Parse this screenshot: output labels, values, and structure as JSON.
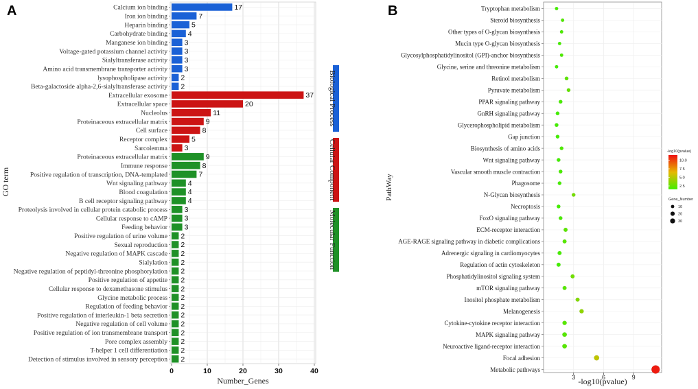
{
  "panels": {
    "a_label": "A",
    "b_label": "B"
  },
  "chart_data": [
    {
      "type": "bar",
      "orientation": "horizontal",
      "title": "",
      "xlabel": "Number_Genes",
      "ylabel": "GO term",
      "xlim": [
        0,
        40
      ],
      "xticks": [
        0,
        10,
        20,
        30,
        40
      ],
      "grid": true,
      "groups": [
        {
          "name": "Biological Process",
          "color": "#1a61d6"
        },
        {
          "name": "Cellular Component",
          "color": "#cc1414"
        },
        {
          "name": "Molecular Function",
          "color": "#1f9127"
        }
      ],
      "bars": [
        {
          "label": "Calcium ion binding",
          "value": 17,
          "group": 0
        },
        {
          "label": "Iron ion binding",
          "value": 7,
          "group": 0
        },
        {
          "label": "Heparin binding",
          "value": 5,
          "group": 0
        },
        {
          "label": "Carbohydrate binding",
          "value": 4,
          "group": 0
        },
        {
          "label": "Manganese ion binding",
          "value": 3,
          "group": 0
        },
        {
          "label": "Voltage-gated potassium channel activity",
          "value": 3,
          "group": 0
        },
        {
          "label": "Sialyltransferase activity",
          "value": 3,
          "group": 0
        },
        {
          "label": "Amino acid transmembrane transporter activity",
          "value": 3,
          "group": 0
        },
        {
          "label": "lysophospholipase activity",
          "value": 2,
          "group": 0
        },
        {
          "label": "Beta-galactoside alpha-2,6-sialyltransferase activity",
          "value": 2,
          "group": 0
        },
        {
          "label": "Extracellular exosome",
          "value": 37,
          "group": 1
        },
        {
          "label": "Extracellular space",
          "value": 20,
          "group": 1
        },
        {
          "label": "Nucleolus",
          "value": 11,
          "group": 1
        },
        {
          "label": "Proteinaceous extracellular matrix",
          "value": 9,
          "group": 1
        },
        {
          "label": "Cell surface",
          "value": 8,
          "group": 1
        },
        {
          "label": "Receptor complex",
          "value": 5,
          "group": 1
        },
        {
          "label": "Sarcolemma",
          "value": 3,
          "group": 1
        },
        {
          "label": "Proteinaceous extracellular matrix",
          "value": 9,
          "group": 2
        },
        {
          "label": "Immune response",
          "value": 8,
          "group": 2
        },
        {
          "label": "Positive regulation of transcription, DNA-templated",
          "value": 7,
          "group": 2
        },
        {
          "label": "Wnt signaling pathway",
          "value": 4,
          "group": 2
        },
        {
          "label": "Blood coagulation",
          "value": 4,
          "group": 2
        },
        {
          "label": "B cell receptor signaling pathway",
          "value": 4,
          "group": 2
        },
        {
          "label": "Proteolysis involved in cellular protein catabolic process",
          "value": 3,
          "group": 2
        },
        {
          "label": "Cellular response to cAMP",
          "value": 3,
          "group": 2
        },
        {
          "label": "Feeding behavior",
          "value": 3,
          "group": 2
        },
        {
          "label": "Positive regulation of urine volume",
          "value": 2,
          "group": 2
        },
        {
          "label": "Sexual reproduction",
          "value": 2,
          "group": 2
        },
        {
          "label": "Negative regulation of MAPK cascade",
          "value": 2,
          "group": 2
        },
        {
          "label": "Sialylation",
          "value": 2,
          "group": 2
        },
        {
          "label": "Negative regulation of peptidyl-threonine phosphorylation",
          "value": 2,
          "group": 2
        },
        {
          "label": "Positive regulation of appetite",
          "value": 2,
          "group": 2
        },
        {
          "label": "Cellular response to dexamethasone stimulus",
          "value": 2,
          "group": 2
        },
        {
          "label": "Glycine metabolic process",
          "value": 2,
          "group": 2
        },
        {
          "label": "Regulation of feeding behavior",
          "value": 2,
          "group": 2
        },
        {
          "label": "Positive regulation of interleukin-1 beta secretion",
          "value": 2,
          "group": 2
        },
        {
          "label": "Negative regulation of cell volume",
          "value": 2,
          "group": 2
        },
        {
          "label": "Positive regulation of ion transmembrane transport",
          "value": 2,
          "group": 2
        },
        {
          "label": "Pore complex assembly",
          "value": 2,
          "group": 2
        },
        {
          "label": "T-helper 1 cell differentiation",
          "value": 2,
          "group": 2
        },
        {
          "label": "Detection of stimulus involved in sensory perception",
          "value": 2,
          "group": 2
        }
      ]
    },
    {
      "type": "scatter",
      "title": "",
      "xlabel": "-log10(pvalue)",
      "ylabel": "PathWay",
      "xlim": [
        0,
        11.8
      ],
      "xticks": [
        3,
        6,
        9
      ],
      "grid": true,
      "color_legend": {
        "title": "-log10(pvalue)",
        "ticks": [
          10.0,
          7.5,
          5.0,
          2.5
        ],
        "range": [
          1.5,
          11.5
        ],
        "low_color": "#44ee00",
        "high_color": "#ee1111"
      },
      "size_legend": {
        "title": "Gene_Number",
        "values": [
          10,
          20,
          30
        ]
      },
      "points": [
        {
          "label": "Tryptophan metabolism",
          "x": 1.3,
          "genes": 2
        },
        {
          "label": "Steroid biosynthesis",
          "x": 1.9,
          "genes": 2
        },
        {
          "label": "Other types of O-glycan biosynthesis",
          "x": 1.8,
          "genes": 2
        },
        {
          "label": "Mucin type O-glycan biosynthesis",
          "x": 1.6,
          "genes": 2
        },
        {
          "label": "Glycosylphosphatidylinositol (GPI)-anchor biosynthesis",
          "x": 1.8,
          "genes": 2
        },
        {
          "label": "Glycine, serine and threonine metabolism",
          "x": 1.3,
          "genes": 2
        },
        {
          "label": "Retinol metabolism",
          "x": 2.3,
          "genes": 3
        },
        {
          "label": "Pyruvate metabolism",
          "x": 2.5,
          "genes": 3
        },
        {
          "label": "PPAR signaling pathway",
          "x": 1.7,
          "genes": 3
        },
        {
          "label": "GnRH signaling pathway",
          "x": 1.4,
          "genes": 3
        },
        {
          "label": "Glycerophospholipid metabolism",
          "x": 1.3,
          "genes": 3
        },
        {
          "label": "Gap junction",
          "x": 1.4,
          "genes": 3
        },
        {
          "label": "Biosynthesis of amino acids",
          "x": 1.8,
          "genes": 3
        },
        {
          "label": "Wnt signaling pathway",
          "x": 1.5,
          "genes": 3
        },
        {
          "label": "Vascular smooth muscle contraction",
          "x": 1.7,
          "genes": 3
        },
        {
          "label": "Phagosome",
          "x": 1.6,
          "genes": 3
        },
        {
          "label": "N-Glycan biosynthesis",
          "x": 3.0,
          "genes": 3
        },
        {
          "label": "Necroptosis",
          "x": 1.5,
          "genes": 3
        },
        {
          "label": "FoxO signaling pathway",
          "x": 1.7,
          "genes": 3
        },
        {
          "label": "ECM-receptor interaction",
          "x": 2.2,
          "genes": 4
        },
        {
          "label": "AGE-RAGE signaling pathway in diabetic complications",
          "x": 2.1,
          "genes": 4
        },
        {
          "label": "Adrenergic signaling in cardiomyocytes",
          "x": 1.6,
          "genes": 4
        },
        {
          "label": "Regulation of actin cytoskeleton",
          "x": 1.5,
          "genes": 4
        },
        {
          "label": "Phosphatidylinositol signaling system",
          "x": 2.9,
          "genes": 4
        },
        {
          "label": "mTOR signaling pathway",
          "x": 2.1,
          "genes": 4
        },
        {
          "label": "Inositol phosphate metabolism",
          "x": 3.4,
          "genes": 4
        },
        {
          "label": "Melanogenesis",
          "x": 3.8,
          "genes": 5
        },
        {
          "label": "Cytokine-cytokine receptor interaction",
          "x": 2.1,
          "genes": 5
        },
        {
          "label": "MAPK signaling pathway",
          "x": 2.1,
          "genes": 6
        },
        {
          "label": "Neuroactive ligand-receptor interaction",
          "x": 2.1,
          "genes": 6
        },
        {
          "label": "Focal adhesion",
          "x": 5.3,
          "genes": 9
        },
        {
          "label": "Metabolic pathways",
          "x": 11.2,
          "genes": 32
        }
      ]
    }
  ]
}
